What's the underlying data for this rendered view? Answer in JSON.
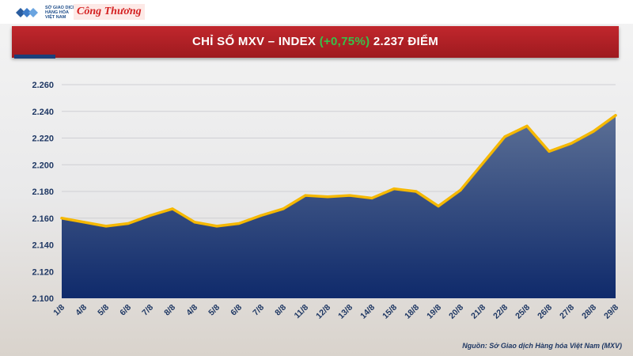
{
  "header": {
    "mxv_logo_text": "SỞ GIAO DỊCH HÀNG HÓA VIỆT NAM",
    "partner_logo_text": "Công Thương"
  },
  "title": {
    "prefix": "CHỈ SỐ MXV – INDEX ",
    "change": "(+0,75%)",
    "suffix": " 2.237 ĐIỂM"
  },
  "colors": {
    "banner_red": "#b01f25",
    "line_yellow": "#f5b800",
    "area_top": "#5b6f95",
    "area_bottom": "#0f2a6b",
    "change_green": "#36c24a",
    "axis_text": "#1f3864"
  },
  "source": "Nguồn: Sở Giao dịch Hàng hóa Việt Nam (MXV)",
  "chart_data": {
    "type": "area",
    "title": "CHỈ SỐ MXV – INDEX (+0,75%) 2.237 ĐIỂM",
    "categories": [
      "1/8",
      "4/8",
      "5/8",
      "6/8",
      "7/8",
      "8/8",
      "4/8",
      "5/8",
      "6/8",
      "7/8",
      "8/8",
      "11/8",
      "12/8",
      "13/8",
      "14/8",
      "15/8",
      "18/8",
      "19/8",
      "20/8",
      "21/8",
      "22/8",
      "25/8",
      "26/8",
      "27/8",
      "28/8",
      "29/8"
    ],
    "values": [
      2160,
      2157,
      2154,
      2156,
      2162,
      2167,
      2157,
      2154,
      2156,
      2162,
      2167,
      2177,
      2176,
      2177,
      2175,
      2182,
      2180,
      2169,
      2181,
      2201,
      2221,
      2229,
      2210,
      2216,
      2225,
      2237
    ],
    "ylim": [
      2100,
      2260
    ],
    "yticks": [
      2100,
      2120,
      2140,
      2160,
      2180,
      2200,
      2220,
      2240,
      2260
    ],
    "ytick_labels": [
      "2.100",
      "2.120",
      "2.140",
      "2.160",
      "2.180",
      "2.200",
      "2.220",
      "2.240",
      "2.260"
    ],
    "grid": true,
    "legend": "none"
  }
}
